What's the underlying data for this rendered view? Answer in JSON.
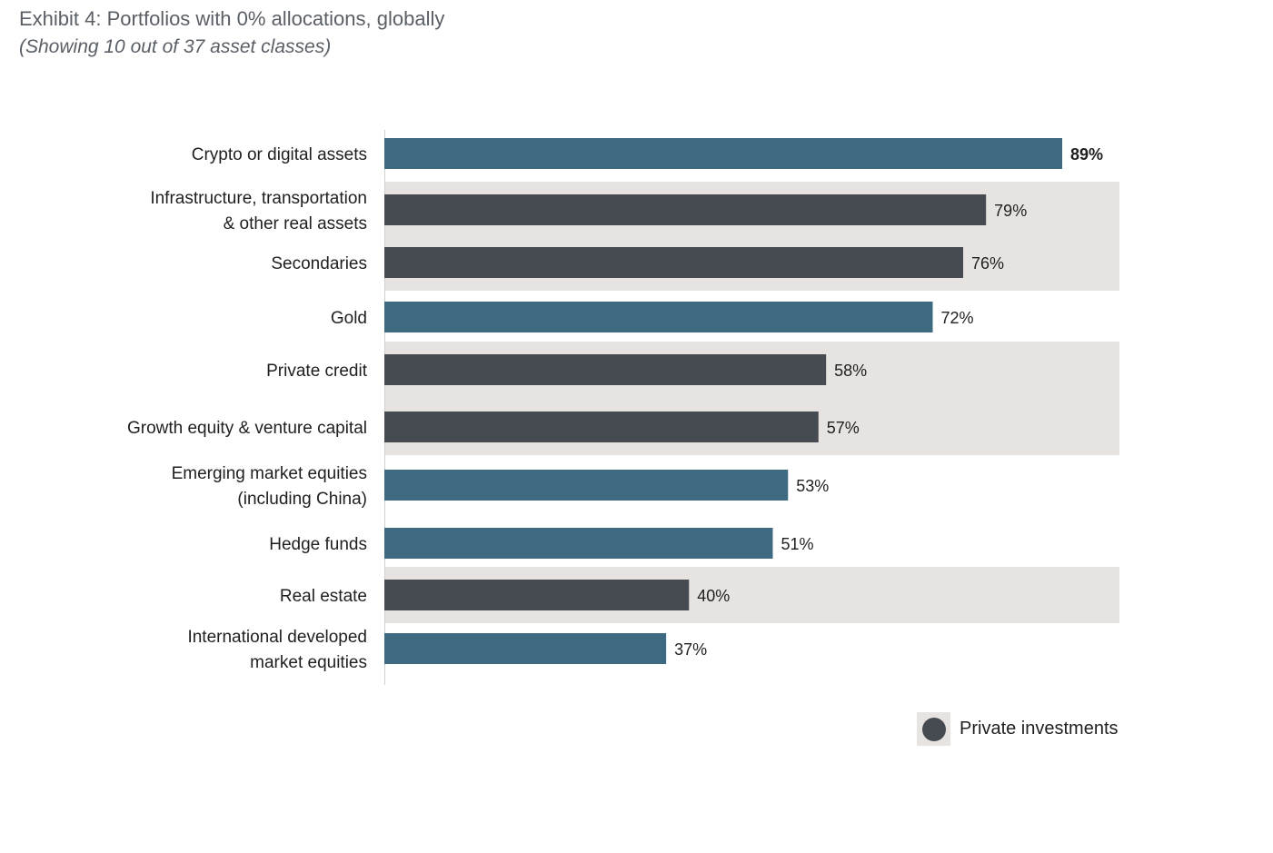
{
  "title": "Exhibit 4: Portfolios with 0% allocations, globally",
  "subtitle": "(Showing 10 out of 37 asset classes)",
  "colors": {
    "public": "#3d6a80",
    "private": "#464b52",
    "highlight_band": "#e7e3e0",
    "axis": "#d0d0d0"
  },
  "legend": {
    "label": "Private investments",
    "icon": "dark-circle-icon"
  },
  "chart_data": {
    "type": "bar",
    "orientation": "horizontal",
    "categories": [
      [
        "Crypto or digital assets"
      ],
      [
        "Infrastructure, transportation",
        "& other real assets"
      ],
      [
        "Secondaries"
      ],
      [
        "Gold"
      ],
      [
        "Private credit"
      ],
      [
        "Growth equity & venture capital"
      ],
      [
        "Emerging market equities",
        "(including China)"
      ],
      [
        "Hedge funds"
      ],
      [
        "Real estate"
      ],
      [
        "International developed",
        "market equities"
      ]
    ],
    "values": [
      89,
      79,
      76,
      72,
      58,
      57,
      53,
      51,
      40,
      37
    ],
    "value_labels": [
      "89%",
      "79%",
      "76%",
      "72%",
      "58%",
      "57%",
      "53%",
      "51%",
      "40%",
      "37%"
    ],
    "private": [
      false,
      true,
      true,
      false,
      true,
      true,
      false,
      false,
      true,
      false
    ],
    "bold_value": [
      true,
      false,
      false,
      false,
      false,
      false,
      false,
      false,
      false,
      false
    ],
    "unit": "%",
    "xlim": [
      0,
      100
    ],
    "grid": false,
    "legend_position": "bottom-right"
  }
}
